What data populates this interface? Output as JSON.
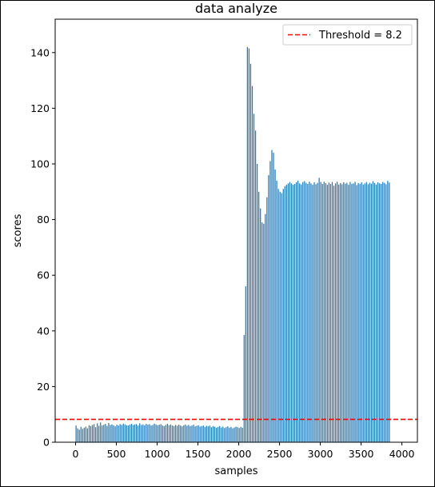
{
  "chart_data": {
    "type": "bar",
    "title": "data analyze",
    "xlabel": "samples",
    "ylabel": "scores",
    "xlim": [
      -250,
      4190
    ],
    "ylim": [
      0,
      152
    ],
    "xticks": [
      0,
      500,
      1000,
      1500,
      2000,
      2500,
      3000,
      3500,
      4000
    ],
    "yticks": [
      0,
      20,
      40,
      60,
      80,
      100,
      120,
      140
    ],
    "bar_color": "#1f77b4",
    "threshold": {
      "label": "Threshold = 8.2",
      "value": 8.2,
      "color": "#ff0000",
      "style": "dashed"
    },
    "legend_position": "top-right",
    "series": [
      {
        "x_start": 0,
        "x_step": 20,
        "values": [
          6.0,
          5.0,
          4.5,
          5.5,
          4.8,
          5.2,
          5.6,
          5.0,
          6.1,
          5.8,
          6.2,
          6.5,
          5.4,
          6.8,
          5.9,
          7.1,
          6.0,
          6.3,
          6.6,
          5.9,
          6.9,
          6.2,
          6.4,
          6.1,
          5.7,
          6.3,
          6.0,
          6.5,
          6.2,
          6.7,
          6.4,
          6.1,
          6.0,
          6.3,
          6.6,
          6.2,
          6.4,
          6.5,
          6.0,
          6.8,
          6.2,
          6.4,
          6.1,
          6.6,
          6.3,
          6.5,
          6.0,
          6.2,
          6.7,
          6.4,
          6.1,
          6.3,
          6.5,
          6.0,
          5.8,
          6.2,
          6.6,
          6.1,
          6.4,
          6.0,
          5.8,
          6.2,
          5.9,
          6.3,
          6.0,
          5.7,
          6.1,
          6.4,
          5.9,
          6.2,
          5.8,
          6.0,
          6.3,
          5.7,
          5.9,
          6.1,
          5.6,
          5.8,
          6.0,
          5.5,
          5.9,
          5.7,
          6.0,
          5.4,
          5.8,
          5.6,
          5.2,
          5.5,
          5.8,
          5.3,
          5.6,
          5.1,
          5.4,
          5.7,
          5.2,
          5.5,
          5.0,
          5.3,
          5.6,
          5.4,
          5.1,
          5.5,
          5.2,
          38.5,
          56.0,
          142.0,
          141.5,
          136.0,
          128.0,
          118.0,
          112.0,
          100.0,
          90.0,
          84.0,
          79.0,
          78.5,
          82.0,
          88.0,
          96.0,
          101.0,
          105.0,
          104.0,
          98.0,
          94.0,
          91.0,
          90.0,
          89.5,
          91.0,
          92.0,
          92.5,
          93.0,
          93.5,
          93.0,
          92.5,
          92.8,
          93.4,
          94.0,
          93.0,
          92.6,
          93.5,
          93.8,
          93.2,
          92.8,
          93.6,
          93.0,
          92.5,
          93.4,
          92.7,
          93.2,
          95.0,
          93.5,
          92.8,
          93.6,
          93.1,
          92.5,
          93.3,
          92.8,
          93.5,
          92.2,
          93.0,
          93.6,
          92.6,
          93.1,
          92.7,
          93.4,
          92.9,
          93.2,
          92.5,
          93.5,
          92.8,
          93.0,
          93.6,
          92.4,
          93.1,
          92.8,
          93.4,
          92.6,
          93.0,
          93.5,
          92.7,
          93.2,
          92.9,
          93.8,
          93.1,
          92.6,
          93.4,
          93.0,
          92.8,
          93.5,
          93.2,
          92.7,
          93.9,
          93.3
        ]
      }
    ]
  }
}
